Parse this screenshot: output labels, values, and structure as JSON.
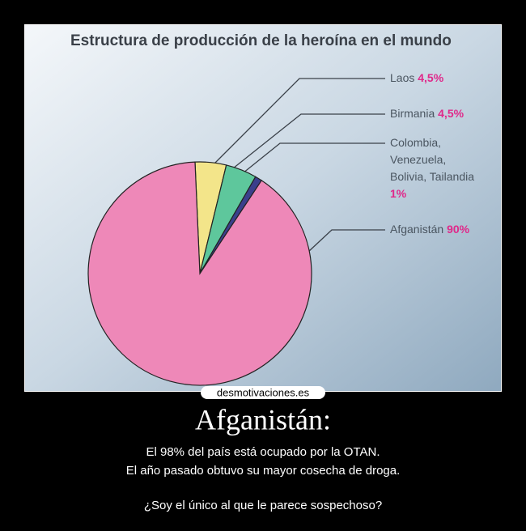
{
  "chart_data": {
    "type": "pie",
    "title": "Estructura de producción de la heroína en el mundo",
    "categories": [
      "Laos",
      "Birmania",
      "Colombia, Venezuela, Bolivia, Tailandia",
      "Afganistán"
    ],
    "values": [
      4.5,
      4.5,
      1,
      90
    ],
    "value_labels": [
      "4,5%",
      "4,5%",
      "1%",
      "90%"
    ],
    "colors": [
      "#f3e58a",
      "#5ec79c",
      "#3b3f8c",
      "#ee88b8"
    ]
  },
  "watermark": "desmotivaciones.es",
  "caption": {
    "title": "Afganistán:",
    "lines": [
      "El 98% del país está ocupado por la OTAN.",
      "El año pasado obtuvo su mayor cosecha de droga.",
      "¿Soy el único al que le parece sospechoso?"
    ]
  }
}
